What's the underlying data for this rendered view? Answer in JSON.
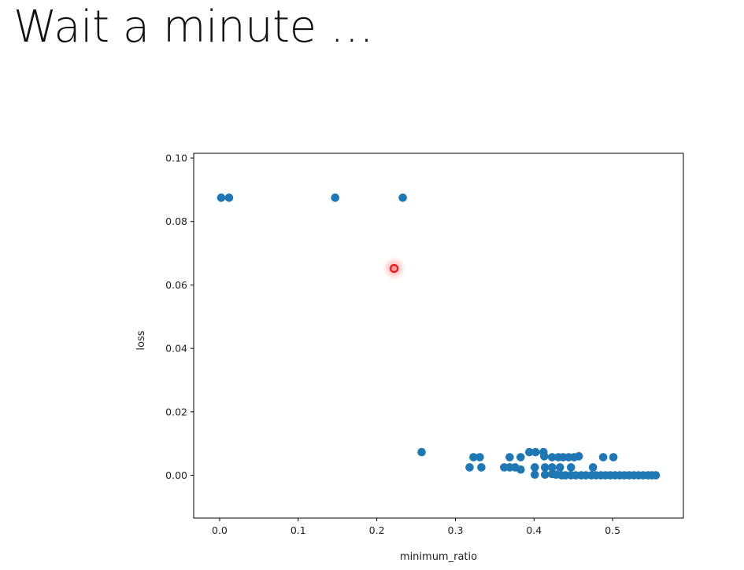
{
  "slide": {
    "title": "Wait a minute …"
  },
  "colors": {
    "point": "#1f77b4",
    "highlight": "#e8161a",
    "axis": "#000000"
  },
  "chart_data": {
    "type": "scatter",
    "title": "",
    "xlabel": "minimum_ratio",
    "ylabel": "loss",
    "xlim": [
      -0.033,
      0.59
    ],
    "ylim": [
      -0.0135,
      0.1015
    ],
    "grid": false,
    "x_ticks": [
      0.0,
      0.1,
      0.2,
      0.3,
      0.4,
      0.5
    ],
    "x_tick_labels": [
      "0.0",
      "0.1",
      "0.2",
      "0.3",
      "0.4",
      "0.5"
    ],
    "y_ticks": [
      0.0,
      0.02,
      0.04,
      0.06,
      0.08,
      0.1
    ],
    "y_tick_labels": [
      "0.00",
      "0.02",
      "0.04",
      "0.06",
      "0.08",
      "0.10"
    ],
    "series": [
      {
        "points": [
          [
            0.002,
            0.0875
          ],
          [
            0.012,
            0.0875
          ],
          [
            0.147,
            0.0875
          ],
          [
            0.233,
            0.0875
          ],
          [
            0.257,
            0.0073
          ],
          [
            0.323,
            0.0057
          ],
          [
            0.331,
            0.0057
          ],
          [
            0.318,
            0.0025
          ],
          [
            0.333,
            0.0025
          ],
          [
            0.369,
            0.0057
          ],
          [
            0.383,
            0.0057
          ],
          [
            0.394,
            0.0073
          ],
          [
            0.402,
            0.0073
          ],
          [
            0.412,
            0.0073
          ],
          [
            0.413,
            0.006
          ],
          [
            0.423,
            0.0057
          ],
          [
            0.431,
            0.0057
          ],
          [
            0.437,
            0.0057
          ],
          [
            0.444,
            0.0057
          ],
          [
            0.451,
            0.0057
          ],
          [
            0.457,
            0.006
          ],
          [
            0.488,
            0.0057
          ],
          [
            0.501,
            0.0057
          ],
          [
            0.362,
            0.0025
          ],
          [
            0.369,
            0.0025
          ],
          [
            0.376,
            0.0025
          ],
          [
            0.383,
            0.0018
          ],
          [
            0.401,
            0.0025
          ],
          [
            0.414,
            0.0025
          ],
          [
            0.423,
            0.0025
          ],
          [
            0.433,
            0.0025
          ],
          [
            0.447,
            0.0025
          ],
          [
            0.475,
            0.0025
          ],
          [
            0.401,
            0.0002
          ],
          [
            0.414,
            0.0002
          ],
          [
            0.423,
            0.0004
          ],
          [
            0.428,
            0.0002
          ],
          [
            0.435,
            0.0
          ],
          [
            0.44,
            0.0
          ],
          [
            0.447,
            0.0
          ],
          [
            0.453,
            0.0
          ],
          [
            0.46,
            0.0
          ],
          [
            0.466,
            0.0
          ],
          [
            0.473,
            0.0
          ],
          [
            0.479,
            0.0
          ],
          [
            0.485,
            0.0
          ],
          [
            0.491,
            0.0
          ],
          [
            0.497,
            0.0
          ],
          [
            0.503,
            0.0
          ],
          [
            0.509,
            0.0
          ],
          [
            0.515,
            0.0
          ],
          [
            0.521,
            0.0
          ],
          [
            0.527,
            0.0
          ],
          [
            0.533,
            0.0
          ],
          [
            0.539,
            0.0
          ],
          [
            0.545,
            0.0
          ],
          [
            0.55,
            0.0
          ],
          [
            0.555,
            0.0
          ]
        ]
      }
    ],
    "highlight": {
      "x": 0.222,
      "y": 0.0652
    }
  }
}
